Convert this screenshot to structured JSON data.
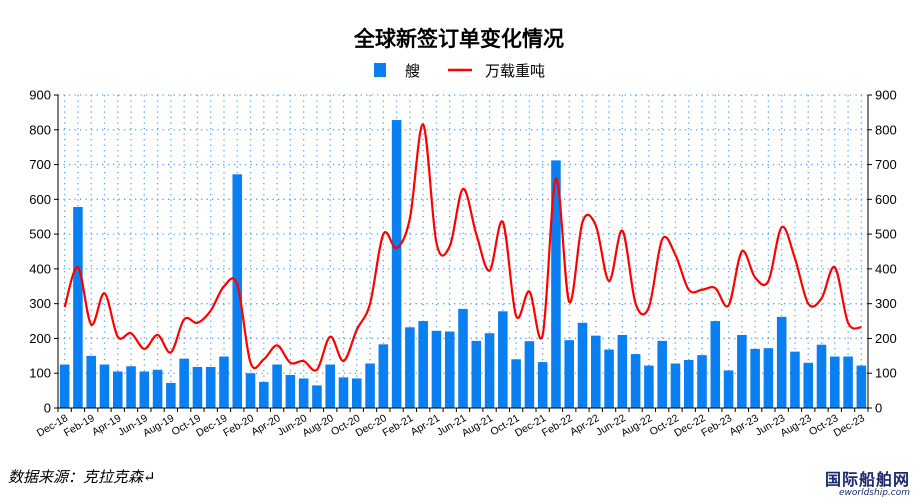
{
  "chart_data": {
    "type": "bar+line",
    "title": "全球新签订单变化情况",
    "legend": [
      "艘",
      "万载重吨"
    ],
    "legend_position": "top-center",
    "colors": {
      "bar": "#0a7ff2",
      "line": "#ff0000",
      "grid": "#4da6ff"
    },
    "ylim": [
      0,
      900
    ],
    "y_ticks": [
      "0",
      "100",
      "200",
      "300",
      "400",
      "500",
      "600",
      "700",
      "800",
      "900"
    ],
    "y2_ticks": [
      "0",
      "100",
      "200",
      "300",
      "400",
      "500",
      "600",
      "700",
      "800",
      "900"
    ],
    "grid": "dotted",
    "x": [
      "Dec-18",
      "Jan-19",
      "Feb-19",
      "Mar-19",
      "Apr-19",
      "May-19",
      "Jun-19",
      "Jul-19",
      "Aug-19",
      "Sep-19",
      "Oct-19",
      "Nov-19",
      "Dec-19",
      "Jan-20",
      "Feb-20",
      "Mar-20",
      "Apr-20",
      "May-20",
      "Jun-20",
      "Jul-20",
      "Aug-20",
      "Sep-20",
      "Oct-20",
      "Nov-20",
      "Dec-20",
      "Jan-21",
      "Feb-21",
      "Mar-21",
      "Apr-21",
      "May-21",
      "Jun-21",
      "Jul-21",
      "Aug-21",
      "Sep-21",
      "Oct-21",
      "Nov-21",
      "Dec-21",
      "Jan-22",
      "Feb-22",
      "Mar-22",
      "Apr-22",
      "May-22",
      "Jun-22",
      "Jul-22",
      "Aug-22",
      "Sep-22",
      "Oct-22",
      "Nov-22",
      "Dec-22",
      "Jan-23",
      "Feb-23",
      "Mar-23",
      "Apr-23",
      "May-23",
      "Jun-23",
      "Jul-23",
      "Aug-23",
      "Sep-23",
      "Oct-23",
      "Nov-23",
      "Dec-23"
    ],
    "x_tick_labels": [
      "Dec-18",
      "Feb-19",
      "Apr-19",
      "Jun-19",
      "Aug-19",
      "Oct-19",
      "Dec-19",
      "Feb-20",
      "Apr-20",
      "Jun-20",
      "Aug-20",
      "Oct-20",
      "Dec-20",
      "Feb-21",
      "Apr-21",
      "Jun-21",
      "Aug-21",
      "Oct-21",
      "Dec-21",
      "Feb-22",
      "Apr-22",
      "Jun-22",
      "Aug-22",
      "Oct-22",
      "Dec-22",
      "Feb-23",
      "Apr-23",
      "Jun-23",
      "Aug-23",
      "Oct-23",
      "Dec-23"
    ],
    "series": [
      {
        "name": "艘",
        "type": "bar",
        "values": [
          125,
          578,
          150,
          125,
          105,
          120,
          105,
          110,
          72,
          142,
          118,
          118,
          148,
          672,
          100,
          75,
          125,
          95,
          85,
          65,
          125,
          88,
          85,
          128,
          183,
          828,
          232,
          250,
          222,
          220,
          285,
          193,
          215,
          278,
          140,
          192,
          132,
          712,
          195,
          245,
          208,
          168,
          210,
          155,
          122,
          193,
          128,
          138,
          152,
          250,
          108,
          210,
          170,
          172,
          262,
          162,
          130,
          182,
          148,
          148,
          122
        ]
      },
      {
        "name": "万载重吨",
        "type": "line",
        "values": [
          290,
          405,
          240,
          330,
          205,
          215,
          170,
          210,
          160,
          255,
          245,
          280,
          350,
          355,
          130,
          140,
          180,
          130,
          135,
          110,
          205,
          135,
          225,
          300,
          500,
          460,
          545,
          815,
          475,
          465,
          630,
          500,
          395,
          535,
          265,
          335,
          210,
          660,
          305,
          535,
          525,
          365,
          510,
          300,
          290,
          485,
          440,
          340,
          340,
          345,
          295,
          450,
          375,
          365,
          520,
          430,
          300,
          315,
          405,
          245,
          232
        ]
      }
    ]
  },
  "footer": {
    "source": "数据来源：克拉克森↵",
    "watermark_cn": "国际船舶网",
    "watermark_en": "eworldship.com"
  }
}
